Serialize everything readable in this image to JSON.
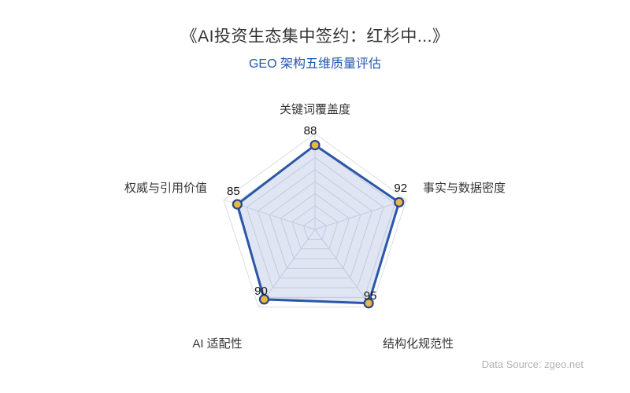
{
  "title": "《AI投资生态集中签约：红杉中...》",
  "subtitle": "GEO 架构五维质量评估",
  "source_note": "Data Source: zgeo.net",
  "chart_data": {
    "type": "radar",
    "title": "GEO 架构五维质量评估",
    "max": 100,
    "ring_count": 8,
    "grid": true,
    "indicators": [
      {
        "label": "关键词覆盖度",
        "value": 88
      },
      {
        "label": "事实与数据密度",
        "value": 92
      },
      {
        "label": "结构化规范性",
        "value": 95
      },
      {
        "label": "AI 适配性",
        "value": 90
      },
      {
        "label": "权威与引用价值",
        "value": 85
      }
    ],
    "colors": {
      "series_line": "#2a57a7",
      "series_fill": "rgba(112,136,203,0.22)",
      "point_fill": "#e8b840",
      "point_stroke": "#26458f",
      "grid_line": "#dadde4",
      "title_text": "#333333",
      "subtitle_text": "#2257b0",
      "axis_text": "#363636",
      "value_text": "#141414",
      "source_text": "#b2b2b7"
    }
  }
}
